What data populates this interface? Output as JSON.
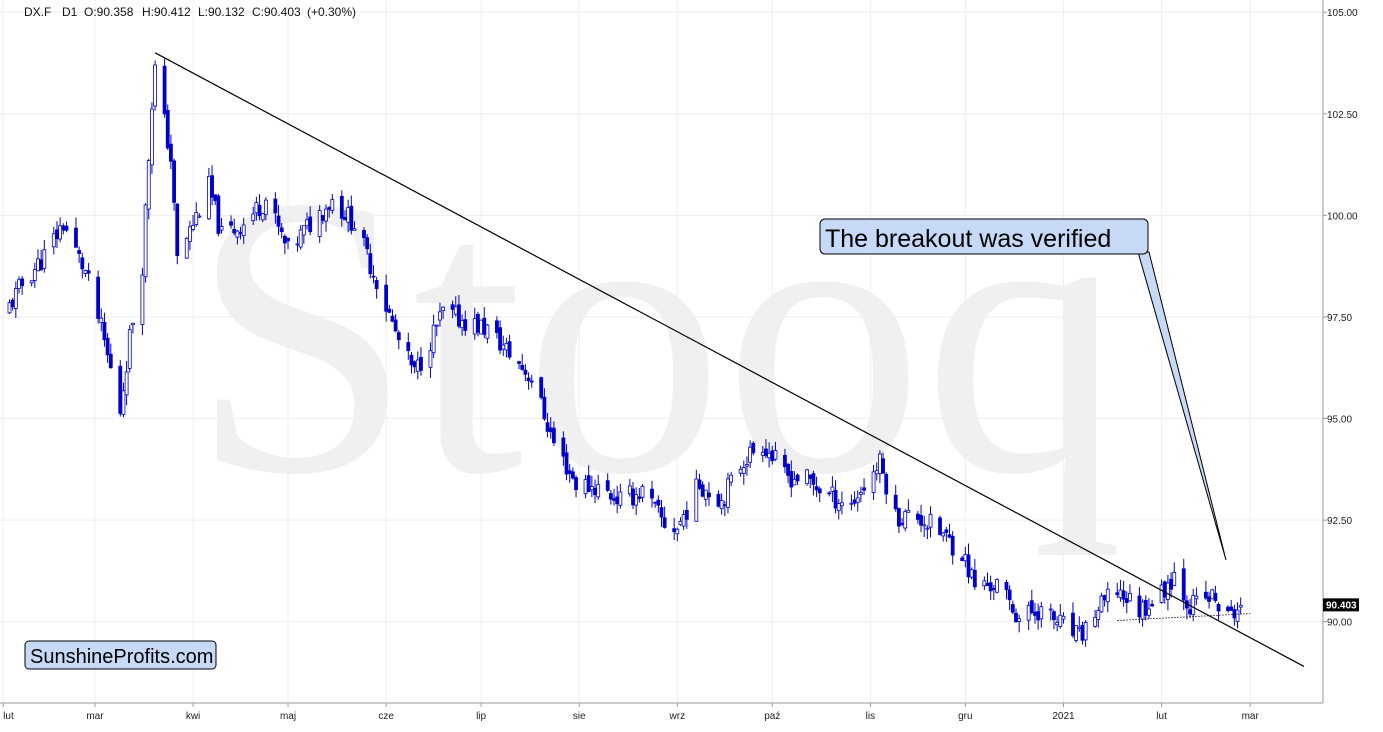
{
  "header": {
    "symbol": "DX.F",
    "interval": "D1",
    "open": "O:90.358",
    "high": "H:90.412",
    "low": "L:90.132",
    "close": "C:90.403",
    "change": "(+0.30%)"
  },
  "watermark": "Stooq",
  "callout": {
    "text": "The breakout was verified"
  },
  "brand": {
    "text": "SunshineProfits.com"
  },
  "last_price_label": "90.403",
  "colors": {
    "candle_outline": "#0000c8",
    "candle_down_fill": "#0000c8",
    "candle_up_fill": "#ffffff",
    "trendline": "#000000",
    "callout_fill": "#c6d9f7",
    "brand_fill": "#c6d9f7",
    "grid": "#eeeeee",
    "price_tag": "#000000"
  },
  "chart_data": {
    "type": "candlestick",
    "title": "",
    "xlabel": "",
    "ylabel": "",
    "ylim": [
      88.0,
      105.3
    ],
    "grid": true,
    "y_axis_side": "right",
    "y_ticks": [
      "105.00",
      "102.50",
      "100.00",
      "97.50",
      "95.00",
      "92.50",
      "90.00"
    ],
    "x_ticks": [
      {
        "label": "lut",
        "date": "2020-02-01"
      },
      {
        "label": "mar",
        "date": "2020-03-01"
      },
      {
        "label": "kwi",
        "date": "2020-04-01"
      },
      {
        "label": "maj",
        "date": "2020-05-01"
      },
      {
        "label": "cze",
        "date": "2020-06-01"
      },
      {
        "label": "lip",
        "date": "2020-07-01"
      },
      {
        "label": "sie",
        "date": "2020-08-01"
      },
      {
        "label": "wrz",
        "date": "2020-09-01"
      },
      {
        "label": "paź",
        "date": "2020-10-01"
      },
      {
        "label": "lis",
        "date": "2020-11-01"
      },
      {
        "label": "gru",
        "date": "2020-12-01"
      },
      {
        "label": "2021",
        "date": "2021-01-01"
      },
      {
        "label": "lut",
        "date": "2021-02-01"
      },
      {
        "label": "mar",
        "date": "2021-03-01"
      }
    ],
    "close_path": [
      [
        "2020-02-01",
        97.5
      ],
      [
        "2020-02-07",
        98.3
      ],
      [
        "2020-02-14",
        99.0
      ],
      [
        "2020-02-20",
        99.8
      ],
      [
        "2020-02-27",
        98.6
      ],
      [
        "2020-03-03",
        97.2
      ],
      [
        "2020-03-09",
        95.2
      ],
      [
        "2020-03-12",
        97.0
      ],
      [
        "2020-03-16",
        98.8
      ],
      [
        "2020-03-19",
        102.8
      ],
      [
        "2020-03-20",
        103.6
      ],
      [
        "2020-03-25",
        101.4
      ],
      [
        "2020-03-27",
        98.9
      ],
      [
        "2020-04-01",
        99.8
      ],
      [
        "2020-04-06",
        100.7
      ],
      [
        "2020-04-10",
        99.5
      ],
      [
        "2020-04-17",
        99.8
      ],
      [
        "2020-04-24",
        100.4
      ],
      [
        "2020-05-01",
        99.1
      ],
      [
        "2020-05-08",
        99.8
      ],
      [
        "2020-05-15",
        100.4
      ],
      [
        "2020-05-22",
        99.8
      ],
      [
        "2020-05-29",
        98.4
      ],
      [
        "2020-06-05",
        96.9
      ],
      [
        "2020-06-10",
        96.1
      ],
      [
        "2020-06-19",
        97.6
      ],
      [
        "2020-06-26",
        97.4
      ],
      [
        "2020-07-03",
        97.2
      ],
      [
        "2020-07-10",
        96.6
      ],
      [
        "2020-07-17",
        96.0
      ],
      [
        "2020-07-24",
        94.4
      ],
      [
        "2020-07-31",
        93.4
      ],
      [
        "2020-08-07",
        93.3
      ],
      [
        "2020-08-14",
        93.0
      ],
      [
        "2020-08-21",
        93.2
      ],
      [
        "2020-08-28",
        92.4
      ],
      [
        "2020-09-01",
        92.3
      ],
      [
        "2020-09-08",
        93.4
      ],
      [
        "2020-09-15",
        93.0
      ],
      [
        "2020-09-22",
        94.0
      ],
      [
        "2020-09-28",
        94.4
      ],
      [
        "2020-10-05",
        93.6
      ],
      [
        "2020-10-12",
        93.5
      ],
      [
        "2020-10-19",
        93.1
      ],
      [
        "2020-10-26",
        92.9
      ],
      [
        "2020-11-04",
        93.9
      ],
      [
        "2020-11-09",
        92.6
      ],
      [
        "2020-11-16",
        92.6
      ],
      [
        "2020-11-23",
        92.2
      ],
      [
        "2020-11-30",
        91.7
      ],
      [
        "2020-12-04",
        90.9
      ],
      [
        "2020-12-11",
        90.9
      ],
      [
        "2020-12-18",
        90.1
      ],
      [
        "2020-12-24",
        90.3
      ],
      [
        "2021-01-01",
        89.9
      ],
      [
        "2021-01-06",
        89.6
      ],
      [
        "2021-01-11",
        90.2
      ],
      [
        "2021-01-18",
        90.8
      ],
      [
        "2021-01-25",
        90.3
      ],
      [
        "2021-02-01",
        90.7
      ],
      [
        "2021-02-05",
        91.2
      ],
      [
        "2021-02-10",
        90.4
      ],
      [
        "2021-02-17",
        90.6
      ],
      [
        "2021-02-22",
        90.1
      ],
      [
        "2021-02-26",
        90.403
      ]
    ],
    "trendline": {
      "from": [
        "2020-03-20",
        104.0
      ],
      "to": [
        "2021-03-18",
        88.9
      ]
    },
    "support_line": {
      "from": [
        "2021-01-18",
        90.03
      ],
      "to": [
        "2021-03-01",
        90.2
      ]
    },
    "last_close": 90.403
  }
}
